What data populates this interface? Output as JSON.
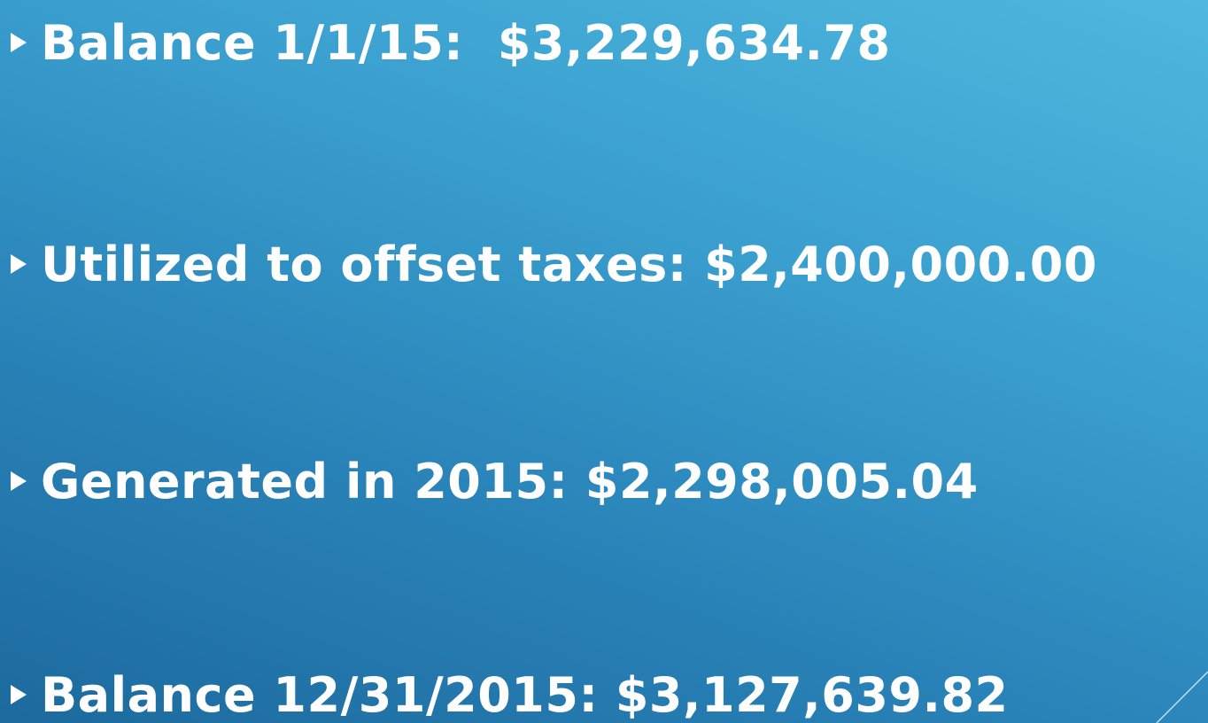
{
  "bullets": [
    "Balance 1/1/15:  $3,229,634.78",
    "Utilized to offset taxes: $2,400,000.00",
    "Generated in 2015: $2,298,005.04",
    "Balance 12/31/2015: $3,127,639.82"
  ]
}
